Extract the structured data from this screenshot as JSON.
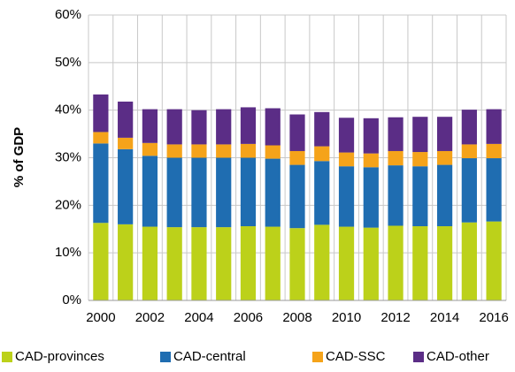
{
  "chart_data": {
    "type": "stacked_bar",
    "ylabel": "% of GDP",
    "categories": [
      "2000",
      null,
      "2002",
      null,
      "2004",
      null,
      "2006",
      null,
      "2008",
      null,
      "2010",
      null,
      "2012",
      null,
      "2014",
      null,
      "2016"
    ],
    "series": [
      {
        "name": "CAD-provinces",
        "color": "#bcd11a",
        "values": [
          16.3,
          16.0,
          15.5,
          15.4,
          15.4,
          15.4,
          15.6,
          15.5,
          15.2,
          15.9,
          15.5,
          15.3,
          15.7,
          15.6,
          15.6,
          16.4,
          16.6
        ]
      },
      {
        "name": "CAD-central",
        "color": "#1f6db1",
        "values": [
          16.7,
          15.8,
          14.9,
          14.6,
          14.6,
          14.6,
          14.4,
          14.3,
          13.3,
          13.4,
          12.7,
          12.7,
          12.7,
          12.6,
          12.9,
          13.5,
          13.3
        ]
      },
      {
        "name": "CAD-SSC",
        "color": "#f5a31a",
        "values": [
          2.4,
          2.4,
          2.7,
          2.8,
          2.8,
          2.8,
          2.9,
          2.8,
          2.9,
          3.1,
          2.9,
          2.9,
          3.0,
          3.0,
          2.9,
          2.9,
          3.0
        ]
      },
      {
        "name": "CAD-other",
        "color": "#5b2d86",
        "values": [
          7.9,
          7.6,
          7.1,
          7.4,
          7.2,
          7.4,
          7.7,
          7.8,
          7.7,
          7.2,
          7.3,
          7.4,
          7.1,
          7.4,
          7.2,
          7.3,
          7.3
        ]
      }
    ],
    "ylim": [
      0,
      60
    ],
    "yticks": [
      {
        "value": 0,
        "label": "0%"
      },
      {
        "value": 10,
        "label": "10%"
      },
      {
        "value": 20,
        "label": "20%"
      },
      {
        "value": 30,
        "label": "30%"
      },
      {
        "value": 40,
        "label": "40%"
      },
      {
        "value": 50,
        "label": "50%"
      },
      {
        "value": 60,
        "label": "60%"
      }
    ],
    "grid": true,
    "legend": "bottom"
  }
}
